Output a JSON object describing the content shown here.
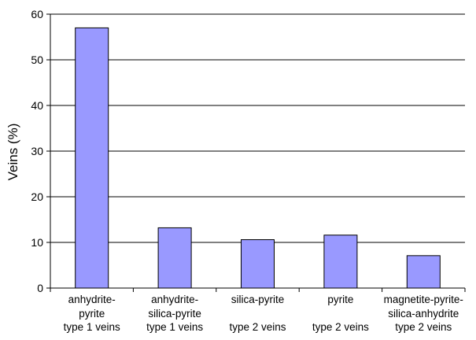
{
  "chart_data": {
    "type": "bar",
    "title": "",
    "ylabel": "Veins (%)",
    "xlabel": "",
    "ylim": [
      0,
      60
    ],
    "yticks": [
      0,
      10,
      20,
      30,
      40,
      50,
      60
    ],
    "grid": "horizontal",
    "legend": "none",
    "bar_color": "#9999ff",
    "bar_edge_color": "#000000",
    "categories": [
      {
        "lines": [
          "anhydrite-",
          "pyrite",
          "type 1 veins"
        ]
      },
      {
        "lines": [
          "anhydrite-",
          "silica-pyrite",
          "type 1 veins"
        ]
      },
      {
        "lines": [
          "silica-pyrite",
          "",
          "type 2 veins"
        ]
      },
      {
        "lines": [
          "pyrite",
          "",
          "type 2 veins"
        ]
      },
      {
        "lines": [
          "magnetite-pyrite-",
          "silica-anhydrite",
          "type 2 veins"
        ]
      }
    ],
    "values": [
      57,
      13.2,
      10.6,
      11.6,
      7.1
    ]
  }
}
